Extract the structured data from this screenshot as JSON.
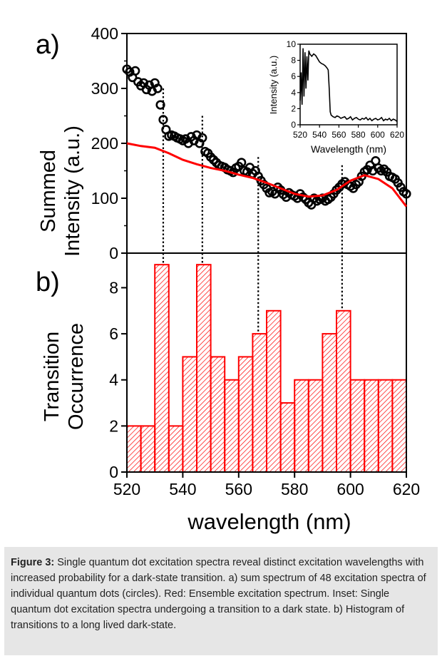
{
  "chart_data": [
    {
      "panel_label": "a)",
      "type": "scatter",
      "ylabel_lines": [
        "Summed",
        "Intensity (a.u.)"
      ],
      "xlim": [
        520,
        620
      ],
      "ylim": [
        0,
        400
      ],
      "yticks": [
        0,
        100,
        200,
        300,
        400
      ],
      "grid": false,
      "series": [
        {
          "kind": "circles",
          "color": "#000000",
          "x": [
            520,
            521,
            522,
            523,
            524,
            525,
            526,
            527,
            528,
            529,
            530,
            531,
            532,
            533,
            534,
            535,
            536,
            537,
            538,
            539,
            540,
            541,
            542,
            543,
            544,
            545,
            546,
            547,
            548,
            549,
            550,
            551,
            552,
            553,
            554,
            555,
            556,
            557,
            558,
            559,
            560,
            561,
            562,
            563,
            564,
            565,
            566,
            567,
            568,
            569,
            570,
            571,
            572,
            573,
            574,
            575,
            576,
            577,
            578,
            579,
            580,
            581,
            582,
            583,
            584,
            585,
            586,
            587,
            588,
            589,
            590,
            591,
            592,
            593,
            594,
            595,
            596,
            597,
            598,
            599,
            600,
            601,
            602,
            603,
            604,
            605,
            606,
            607,
            608,
            609,
            610,
            611,
            612,
            613,
            614,
            615,
            616,
            617,
            618,
            619,
            620
          ],
          "y": [
            335,
            330,
            320,
            332,
            312,
            305,
            310,
            298,
            306,
            295,
            310,
            300,
            270,
            243,
            225,
            213,
            215,
            213,
            210,
            208,
            205,
            208,
            200,
            212,
            205,
            215,
            200,
            210,
            185,
            182,
            175,
            170,
            165,
            160,
            158,
            156,
            152,
            150,
            147,
            155,
            158,
            165,
            150,
            148,
            156,
            145,
            150,
            140,
            132,
            125,
            118,
            110,
            112,
            108,
            120,
            115,
            107,
            102,
            110,
            106,
            104,
            100,
            108,
            102,
            98,
            92,
            88,
            100,
            95,
            98,
            100,
            95,
            98,
            102,
            108,
            115,
            120,
            126,
            130,
            125,
            122,
            118,
            125,
            130,
            140,
            148,
            152,
            160,
            150,
            168,
            155,
            150,
            153,
            148,
            140,
            138,
            135,
            128,
            120,
            112,
            108
          ]
        },
        {
          "kind": "line",
          "color": "#ff0000",
          "x": [
            520,
            525,
            530,
            535,
            540,
            545,
            550,
            555,
            560,
            565,
            570,
            575,
            580,
            585,
            590,
            595,
            600,
            605,
            610,
            615,
            620
          ],
          "y": [
            200,
            195,
            192,
            182,
            170,
            162,
            155,
            150,
            143,
            137,
            128,
            118,
            108,
            103,
            105,
            115,
            132,
            142,
            135,
            118,
            85
          ]
        }
      ],
      "markers": [
        {
          "x": 533,
          "y_top": 300
        },
        {
          "x": 547,
          "y_top": 250
        },
        {
          "x": 567,
          "y_top": 175
        },
        {
          "x": 597,
          "y_top": 160
        }
      ],
      "inset": {
        "type": "line",
        "ylabel": "Intensity (a.u.)",
        "xlabel": "Wavelength (nm)",
        "xlim": [
          520,
          620
        ],
        "ylim": [
          0,
          10
        ],
        "xticks": [
          520,
          540,
          560,
          580,
          600,
          620
        ],
        "yticks": [
          0,
          2,
          4,
          6,
          8,
          10
        ],
        "x": [
          520,
          521,
          522,
          523,
          524,
          525,
          526,
          527,
          528,
          529,
          530,
          532,
          534,
          536,
          538,
          540,
          542,
          544,
          546,
          548,
          549,
          550,
          551,
          552,
          554,
          556,
          558,
          560,
          562,
          564,
          566,
          568,
          570,
          572,
          574,
          576,
          578,
          580,
          582,
          584,
          586,
          588,
          590,
          592,
          594,
          596,
          598,
          600,
          602,
          604,
          606,
          608,
          610,
          612,
          614,
          616,
          618,
          620
        ],
        "y": [
          3.0,
          6.5,
          2.5,
          9.5,
          3.5,
          9.0,
          4.5,
          8.5,
          5.5,
          9.2,
          8.8,
          8.5,
          8.8,
          8.6,
          8.2,
          7.8,
          7.6,
          7.5,
          7.3,
          7.0,
          6.8,
          4.5,
          1.6,
          1.2,
          1.0,
          0.9,
          1.1,
          1.0,
          0.8,
          0.9,
          1.0,
          0.7,
          0.8,
          1.0,
          0.6,
          0.8,
          0.9,
          0.7,
          0.6,
          0.8,
          0.7,
          0.9,
          0.6,
          0.8,
          0.5,
          0.7,
          0.8,
          0.6,
          0.7,
          0.9,
          0.5,
          0.7,
          0.6,
          0.8,
          0.5,
          0.7,
          0.6,
          0.4
        ]
      }
    },
    {
      "panel_label": "b)",
      "type": "bar",
      "ylabel_lines": [
        "Transition",
        "Occurrence"
      ],
      "xlabel": "wavelength (nm)",
      "xlim": [
        520,
        620
      ],
      "ylim": [
        0,
        9.5
      ],
      "xticks": [
        520,
        540,
        560,
        580,
        600,
        620
      ],
      "yticks": [
        0,
        2,
        4,
        6,
        8
      ],
      "bin_width": 5,
      "bin_starts": [
        520,
        525,
        530,
        535,
        540,
        545,
        550,
        555,
        560,
        565,
        570,
        575,
        580,
        585,
        590,
        595,
        600,
        605,
        610,
        615
      ],
      "values": [
        2,
        2,
        9,
        2,
        5,
        9,
        5,
        4,
        5,
        6,
        7,
        3,
        4,
        4,
        6,
        7,
        4,
        4,
        4,
        4
      ],
      "color": "#ff0000",
      "fill": "diagonal hatch"
    }
  ],
  "caption": {
    "label": "Figure 3:",
    "text": " Single quantum dot excitation spectra reveal distinct excitation wavelengths with increased probability for a dark-state transition. a) sum spectrum of 48 excitation spectra of individual quantum dots (circles). Red: Ensemble excitation spectrum. Inset: Single quantum dot excitation spectra undergoing a transition to a dark state. b) Histogram of transitions to a long lived dark-state."
  }
}
